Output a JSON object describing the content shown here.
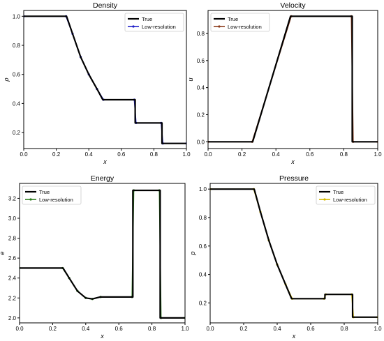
{
  "chart_data": [
    {
      "type": "line",
      "title": "Density",
      "xlabel": "x",
      "ylabel": "ρ",
      "xlim": [
        0,
        1
      ],
      "ylim": [
        0.09,
        1.04
      ],
      "xticks": [
        "0.0",
        "0.2",
        "0.4",
        "0.6",
        "0.8",
        "1.0"
      ],
      "yticks": [
        "0.2",
        "0.4",
        "0.6",
        "0.8",
        "1.0"
      ],
      "xtick_values": [
        0,
        0.2,
        0.4,
        0.6,
        0.8,
        1.0
      ],
      "ytick_values": [
        0.2,
        0.4,
        0.6,
        0.8,
        1.0
      ],
      "legend": "top-right",
      "grid": false,
      "series": [
        {
          "name": "True",
          "color": "#000000",
          "x": [
            0,
            0.263,
            0.3,
            0.35,
            0.4,
            0.45,
            0.486,
            0.685,
            0.685,
            0.85,
            0.85,
            1.0
          ],
          "y": [
            1.0,
            1.0,
            0.88,
            0.72,
            0.6,
            0.5,
            0.426,
            0.426,
            0.266,
            0.266,
            0.125,
            0.125
          ]
        },
        {
          "name": "Low-resolution",
          "color": "#1f1fc8",
          "marker": "circle",
          "x": [
            0,
            0.26,
            0.3,
            0.35,
            0.4,
            0.45,
            0.49,
            0.68,
            0.69,
            0.845,
            0.855,
            1.0
          ],
          "y": [
            1.0,
            1.0,
            0.88,
            0.72,
            0.6,
            0.5,
            0.426,
            0.426,
            0.266,
            0.266,
            0.125,
            0.125
          ]
        }
      ]
    },
    {
      "type": "line",
      "title": "Velocity",
      "xlabel": "x",
      "ylabel": "u",
      "xlim": [
        0,
        1
      ],
      "ylim": [
        -0.05,
        0.97
      ],
      "xticks": [
        "0.0",
        "0.2",
        "0.4",
        "0.6",
        "0.8",
        "1.0"
      ],
      "yticks": [
        "0.0",
        "0.2",
        "0.4",
        "0.6",
        "0.8"
      ],
      "xtick_values": [
        0,
        0.2,
        0.4,
        0.6,
        0.8,
        1.0
      ],
      "ytick_values": [
        0,
        0.2,
        0.4,
        0.6,
        0.8
      ],
      "legend": "top-left",
      "grid": false,
      "series": [
        {
          "name": "True",
          "color": "#000000",
          "x": [
            0,
            0.263,
            0.486,
            0.85,
            0.85,
            1.0
          ],
          "y": [
            0,
            0,
            0.927,
            0.927,
            0,
            0
          ]
        },
        {
          "name": "Low-resolution",
          "color": "#8b3a1a",
          "marker": "circle",
          "x": [
            0,
            0.26,
            0.49,
            0.845,
            0.855,
            1.0
          ],
          "y": [
            0,
            0,
            0.927,
            0.927,
            0,
            0
          ]
        }
      ]
    },
    {
      "type": "line",
      "title": "Energy",
      "xlabel": "x",
      "ylabel": "e",
      "xlim": [
        0,
        1
      ],
      "ylim": [
        1.95,
        3.35
      ],
      "xticks": [
        "0.0",
        "0.2",
        "0.4",
        "0.6",
        "0.8",
        "1.0"
      ],
      "yticks": [
        "2.0",
        "2.2",
        "2.4",
        "2.6",
        "2.8",
        "3.0",
        "3.2"
      ],
      "xtick_values": [
        0,
        0.2,
        0.4,
        0.6,
        0.8,
        1.0
      ],
      "ytick_values": [
        2.0,
        2.2,
        2.4,
        2.6,
        2.8,
        3.0,
        3.2
      ],
      "legend": "top-left",
      "grid": false,
      "series": [
        {
          "name": "True",
          "color": "#000000",
          "x": [
            0,
            0.263,
            0.3,
            0.35,
            0.4,
            0.44,
            0.486,
            0.685,
            0.685,
            0.85,
            0.85,
            1.0
          ],
          "y": [
            2.5,
            2.5,
            2.4,
            2.27,
            2.2,
            2.19,
            2.21,
            2.21,
            3.28,
            3.28,
            2.0,
            2.0
          ]
        },
        {
          "name": "Low-resolution",
          "color": "#2e7d1f",
          "marker": "circle",
          "x": [
            0,
            0.26,
            0.3,
            0.35,
            0.4,
            0.44,
            0.49,
            0.68,
            0.69,
            0.845,
            0.855,
            1.0
          ],
          "y": [
            2.5,
            2.5,
            2.4,
            2.27,
            2.2,
            2.19,
            2.21,
            2.21,
            3.28,
            3.28,
            2.0,
            2.0
          ]
        }
      ]
    },
    {
      "type": "line",
      "title": "Pressure",
      "xlabel": "x",
      "ylabel": "p",
      "xlim": [
        0,
        1
      ],
      "ylim": [
        0.06,
        1.04
      ],
      "xticks": [
        "0.0",
        "0.2",
        "0.4",
        "0.6",
        "0.8",
        "1.0"
      ],
      "yticks": [
        "0.2",
        "0.4",
        "0.6",
        "0.8",
        "1.0"
      ],
      "xtick_values": [
        0,
        0.2,
        0.4,
        0.6,
        0.8,
        1.0
      ],
      "ytick_values": [
        0.2,
        0.4,
        0.6,
        0.8,
        1.0
      ],
      "legend": "top-right",
      "grid": false,
      "series": [
        {
          "name": "True",
          "color": "#000000",
          "x": [
            0,
            0.263,
            0.3,
            0.35,
            0.4,
            0.45,
            0.486,
            0.685,
            0.685,
            0.85,
            0.85,
            1.0
          ],
          "y": [
            1.0,
            1.0,
            0.84,
            0.64,
            0.47,
            0.33,
            0.23,
            0.23,
            0.26,
            0.26,
            0.1,
            0.1
          ]
        },
        {
          "name": "Low-resolution",
          "color": "#d4b800",
          "marker": "circle",
          "x": [
            0,
            0.26,
            0.3,
            0.35,
            0.4,
            0.45,
            0.49,
            0.68,
            0.69,
            0.845,
            0.855,
            1.0
          ],
          "y": [
            1.0,
            1.0,
            0.84,
            0.64,
            0.47,
            0.33,
            0.23,
            0.23,
            0.26,
            0.26,
            0.1,
            0.1
          ]
        }
      ]
    }
  ]
}
